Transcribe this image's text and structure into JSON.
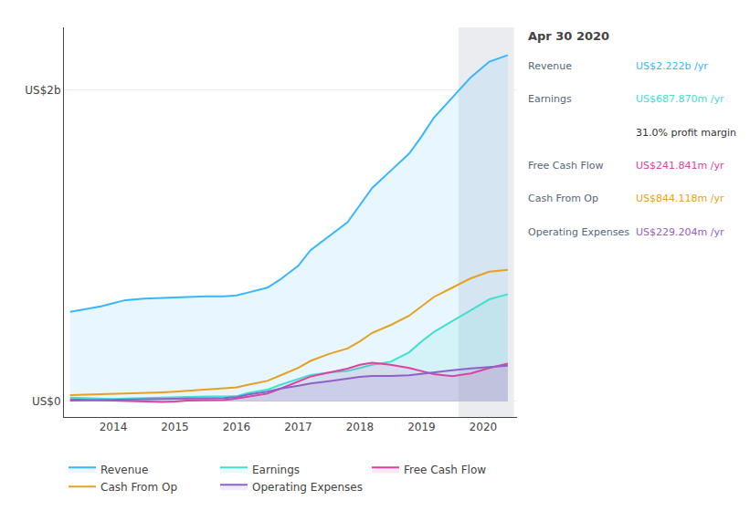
{
  "chart_data": {
    "type": "area",
    "x": [
      2013.3,
      2013.5,
      2013.8,
      2014.0,
      2014.2,
      2014.5,
      2014.8,
      2015.0,
      2015.2,
      2015.5,
      2015.8,
      2016.0,
      2016.2,
      2016.5,
      2016.7,
      2017.0,
      2017.2,
      2017.5,
      2017.8,
      2018.0,
      2018.2,
      2018.5,
      2018.8,
      2019.0,
      2019.2,
      2019.5,
      2019.8,
      2020.1,
      2020.4
    ],
    "xlim": [
      2013.2,
      2020.55
    ],
    "xticks": [
      2014,
      2015,
      2016,
      2017,
      2018,
      2019,
      2020
    ],
    "ylim": [
      -0.1,
      2.4
    ],
    "yticks": [
      {
        "value": 0,
        "label": "US$0"
      },
      {
        "value": 2,
        "label": "US$2b"
      }
    ],
    "grid": "y",
    "legend": "bottom",
    "highlight_x": [
      2019.6,
      2020.5
    ],
    "series": [
      {
        "name": "Revenue",
        "color": "#38b6ff",
        "type": "area",
        "values": [
          0.575,
          0.59,
          0.61,
          0.63,
          0.65,
          0.66,
          0.665,
          0.67,
          0.672,
          0.675,
          0.675,
          0.68,
          0.7,
          0.73,
          0.78,
          0.87,
          0.97,
          1.06,
          1.15,
          1.26,
          1.37,
          1.48,
          1.59,
          1.7,
          1.82,
          1.95,
          2.08,
          2.18,
          2.222
        ]
      },
      {
        "name": "Earnings",
        "color": "#40e0d0",
        "type": "area",
        "values": [
          0.025,
          0.022,
          0.018,
          0.016,
          0.018,
          0.022,
          0.026,
          0.028,
          0.03,
          0.032,
          0.032,
          0.034,
          0.055,
          0.075,
          0.105,
          0.145,
          0.17,
          0.185,
          0.195,
          0.215,
          0.235,
          0.255,
          0.315,
          0.385,
          0.445,
          0.515,
          0.585,
          0.655,
          0.688
        ]
      },
      {
        "name": "Free Cash Flow",
        "color": "#e040a0",
        "type": "area",
        "values": [
          0.012,
          0.01,
          0.008,
          0.005,
          0.002,
          0.0,
          -0.003,
          0.0,
          0.005,
          0.008,
          0.01,
          0.018,
          0.03,
          0.05,
          0.08,
          0.13,
          0.16,
          0.185,
          0.21,
          0.235,
          0.248,
          0.235,
          0.215,
          0.195,
          0.175,
          0.162,
          0.18,
          0.215,
          0.242
        ]
      },
      {
        "name": "Cash From Op",
        "color": "#e8a020",
        "type": "line",
        "values": [
          0.04,
          0.042,
          0.044,
          0.046,
          0.05,
          0.055,
          0.058,
          0.062,
          0.068,
          0.074,
          0.082,
          0.09,
          0.108,
          0.132,
          0.165,
          0.215,
          0.26,
          0.305,
          0.34,
          0.385,
          0.44,
          0.49,
          0.55,
          0.61,
          0.67,
          0.73,
          0.79,
          0.832,
          0.844
        ]
      },
      {
        "name": "Operating Expenses",
        "color": "#9060c8",
        "type": "area",
        "values": [
          0.005,
          0.006,
          0.007,
          0.008,
          0.01,
          0.012,
          0.014,
          0.016,
          0.018,
          0.02,
          0.022,
          0.028,
          0.045,
          0.062,
          0.082,
          0.1,
          0.115,
          0.13,
          0.148,
          0.158,
          0.163,
          0.163,
          0.168,
          0.178,
          0.188,
          0.2,
          0.212,
          0.222,
          0.229
        ]
      }
    ],
    "annotations": {
      "title": "Apr 30 2020",
      "rows": [
        {
          "label": "Revenue",
          "value": "US$2.222b /yr",
          "color": "#38b6ff"
        },
        {
          "label": "Earnings",
          "value": "US$687.870m /yr",
          "color": "#40e0d0"
        },
        {
          "value": "31.0% profit margin",
          "color": "#ffffff"
        },
        {
          "label": "Free Cash Flow",
          "value": "US$241.841m /yr",
          "color": "#e040a0"
        },
        {
          "label": "Cash From Op",
          "value": "US$844.118m /yr",
          "color": "#e8a020"
        },
        {
          "label": "Operating Expenses",
          "value": "US$229.204m /yr",
          "color": "#9060c8"
        }
      ]
    }
  }
}
